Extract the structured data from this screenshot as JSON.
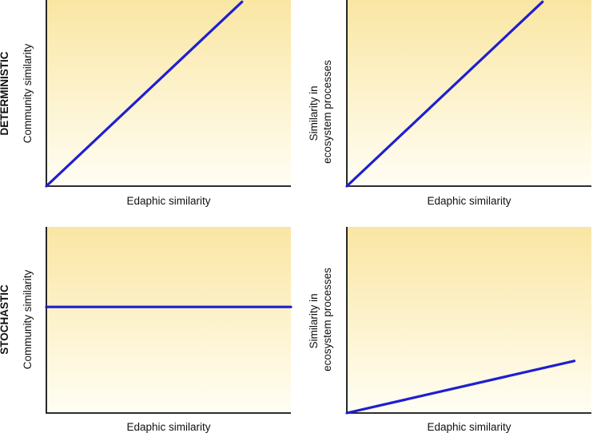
{
  "figure": {
    "row_labels": {
      "top": "DETERMINISTIC",
      "bottom": "STOCHASTIC"
    },
    "background_gradient": [
      "#fae6a3",
      "#fffef4"
    ],
    "line_color": "#1f1fcf"
  },
  "chart_data": [
    {
      "type": "line",
      "row": "DETERMINISTIC",
      "xlabel": "Edaphic similarity",
      "ylabel": [
        "Community similarity"
      ],
      "xlim": [
        0,
        1
      ],
      "ylim": [
        0,
        1
      ],
      "series": [
        {
          "x": [
            0,
            0.8
          ],
          "y": [
            0,
            0.99
          ]
        }
      ]
    },
    {
      "type": "line",
      "row": "DETERMINISTIC",
      "xlabel": "Edaphic similarity",
      "ylabel": [
        "Similarity in",
        "ecosystem processes"
      ],
      "xlim": [
        0,
        1
      ],
      "ylim": [
        0,
        1
      ],
      "series": [
        {
          "x": [
            0,
            0.8
          ],
          "y": [
            0,
            0.99
          ]
        }
      ]
    },
    {
      "type": "line",
      "row": "STOCHASTIC",
      "xlabel": "Edaphic similarity",
      "ylabel": [
        "Community similarity"
      ],
      "xlim": [
        0,
        1
      ],
      "ylim": [
        0,
        1
      ],
      "series": [
        {
          "x": [
            0,
            1
          ],
          "y": [
            0.57,
            0.57
          ]
        }
      ]
    },
    {
      "type": "line",
      "row": "STOCHASTIC",
      "xlabel": "Edaphic similarity",
      "ylabel": [
        "Similarity in",
        "ecosystem processes"
      ],
      "xlim": [
        0,
        1
      ],
      "ylim": [
        0,
        1
      ],
      "series": [
        {
          "x": [
            0,
            0.93
          ],
          "y": [
            0,
            0.28
          ]
        }
      ]
    }
  ]
}
